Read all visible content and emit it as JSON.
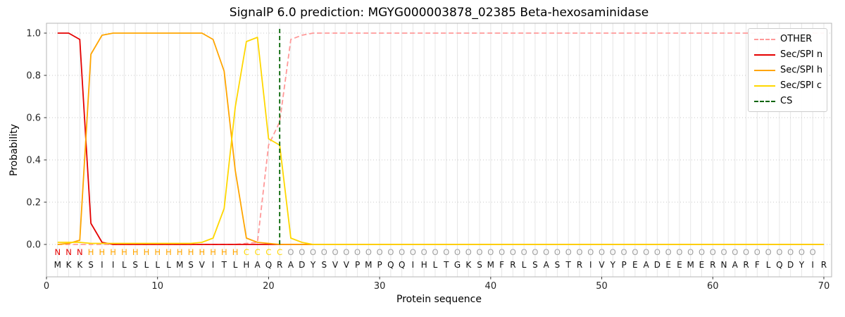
{
  "chart_data": {
    "type": "line",
    "title": "SignalP 6.0 prediction: MGYG000003878_02385 Beta-hexosaminidase",
    "xlabel": "Protein sequence",
    "ylabel": "Probability",
    "xlim": [
      0,
      70.7
    ],
    "ylim": [
      0,
      1.05
    ],
    "xticks": [
      0,
      10,
      20,
      30,
      40,
      50,
      60,
      70
    ],
    "yticks": [
      0.0,
      0.2,
      0.4,
      0.6,
      0.8,
      1.0
    ],
    "grid": true,
    "x_start": 1,
    "sequence": "MKKSIILSLLLMSVITLHAQRADYSVVPMPQQIHLTGKSMFRLSASTRIVYPEADEEMERNARFLQDYIR",
    "regions": "NNNHHHHHHHHHHHHHHCCCCOOOOOOOOOOOOOOOOOOOOOOOOOOOOOOOOOOOOOOOOOOOOOOOO",
    "region_colors": {
      "N": "#e50000",
      "H": "#ffa500",
      "C": "#ffd700",
      "O": "#a0a0a0"
    },
    "sequence_color": "#111111",
    "cs": {
      "name": "CS",
      "x": 21,
      "color": "#006400",
      "dash": "dashed"
    },
    "series": [
      {
        "key": "other",
        "name": "OTHER",
        "color": "#ff9999",
        "dash": "dashed",
        "values": [
          0,
          0,
          0,
          0,
          0,
          0,
          0,
          0,
          0,
          0,
          0,
          0,
          0,
          0,
          0,
          0,
          0,
          0.005,
          0.01,
          0.47,
          0.58,
          0.97,
          0.99,
          1,
          1,
          1,
          1,
          1,
          1,
          1,
          1,
          1,
          1,
          1,
          1,
          1,
          1,
          1,
          1,
          1,
          1,
          1,
          1,
          1,
          1,
          1,
          1,
          1,
          1,
          1,
          1,
          1,
          1,
          1,
          1,
          1,
          1,
          1,
          1,
          1,
          1,
          1,
          1,
          1,
          1,
          1,
          1,
          1,
          1,
          1
        ]
      },
      {
        "key": "n",
        "name": "Sec/SPI n",
        "color": "#e50000",
        "dash": "solid",
        "values": [
          1,
          1,
          0.97,
          0.1,
          0.01,
          0,
          0,
          0,
          0,
          0,
          0,
          0,
          0,
          0,
          0,
          0,
          0,
          0,
          0,
          0,
          0,
          0,
          0,
          0,
          0,
          0,
          0,
          0,
          0,
          0,
          0,
          0,
          0,
          0,
          0,
          0,
          0,
          0,
          0,
          0,
          0,
          0,
          0,
          0,
          0,
          0,
          0,
          0,
          0,
          0,
          0,
          0,
          0,
          0,
          0,
          0,
          0,
          0,
          0,
          0,
          0,
          0,
          0,
          0,
          0,
          0,
          0,
          0,
          0,
          0
        ]
      },
      {
        "key": "h",
        "name": "Sec/SPI h",
        "color": "#ffa500",
        "dash": "solid",
        "values": [
          0,
          0.005,
          0.02,
          0.9,
          0.99,
          1,
          1,
          1,
          1,
          1,
          1,
          1,
          1,
          1,
          0.97,
          0.82,
          0.35,
          0.03,
          0.01,
          0.005,
          0,
          0,
          0,
          0,
          0,
          0,
          0,
          0,
          0,
          0,
          0,
          0,
          0,
          0,
          0,
          0,
          0,
          0,
          0,
          0,
          0,
          0,
          0,
          0,
          0,
          0,
          0,
          0,
          0,
          0,
          0,
          0,
          0,
          0,
          0,
          0,
          0,
          0,
          0,
          0,
          0,
          0,
          0,
          0,
          0,
          0,
          0,
          0,
          0,
          0
        ]
      },
      {
        "key": "c",
        "name": "Sec/SPI c",
        "color": "#ffd700",
        "dash": "solid",
        "values": [
          0.01,
          0.01,
          0.01,
          0.005,
          0.005,
          0.005,
          0.005,
          0.005,
          0.005,
          0.005,
          0.005,
          0.005,
          0.005,
          0.01,
          0.03,
          0.17,
          0.65,
          0.96,
          0.98,
          0.5,
          0.47,
          0.03,
          0.01,
          0,
          0,
          0,
          0,
          0,
          0,
          0,
          0,
          0,
          0,
          0,
          0,
          0,
          0,
          0,
          0,
          0,
          0,
          0,
          0,
          0,
          0,
          0,
          0,
          0,
          0,
          0,
          0,
          0,
          0,
          0,
          0,
          0,
          0,
          0,
          0,
          0,
          0,
          0,
          0,
          0,
          0,
          0,
          0,
          0,
          0,
          0
        ]
      }
    ],
    "style": {
      "grid_vertical": "#e6e6e6",
      "grid_horizontal": "#c8c8c8",
      "spine": "#b4b4b4",
      "tick_text": "#262626",
      "line_width": 1.8
    }
  },
  "legend": {
    "position": "upper right",
    "entries": [
      {
        "label": "OTHER",
        "color": "#ff9999",
        "dash": "dashed"
      },
      {
        "label": "Sec/SPI n",
        "color": "#e50000",
        "dash": "solid"
      },
      {
        "label": "Sec/SPI h",
        "color": "#ffa500",
        "dash": "solid"
      },
      {
        "label": "Sec/SPI c",
        "color": "#ffd700",
        "dash": "solid"
      },
      {
        "label": "CS",
        "color": "#006400",
        "dash": "dashed"
      }
    ]
  }
}
